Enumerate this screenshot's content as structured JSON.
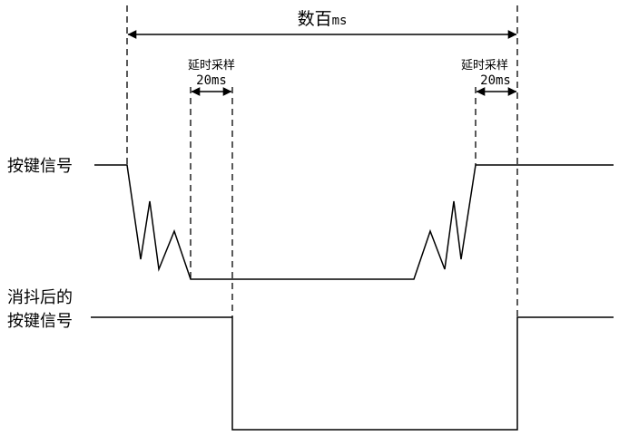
{
  "labels": {
    "total_duration_prefix": "数百",
    "total_duration_unit": "ms",
    "delay_sample_left_title": "延时采样",
    "delay_sample_left_value": "20ms",
    "delay_sample_right_title": "延时采样",
    "delay_sample_right_value": "20ms",
    "raw_signal": "按键信号",
    "debounced_signal_line1": "消抖后的",
    "debounced_signal_line2": "按键信号"
  },
  "colors": {
    "line": "#000000",
    "background": "#ffffff"
  }
}
